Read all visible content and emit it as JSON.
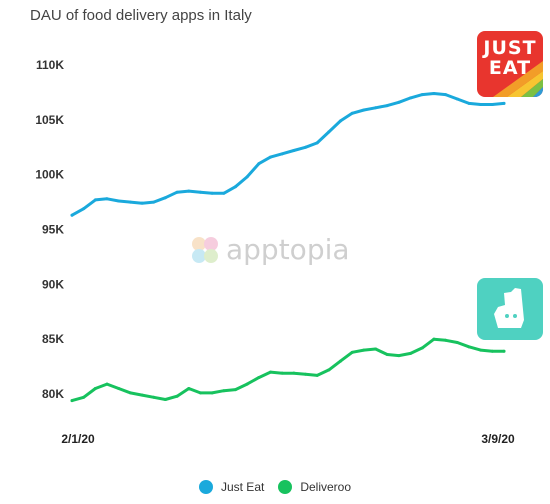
{
  "chart_data": {
    "type": "line",
    "title": "DAU of food delivery apps in Italy",
    "y_ticks": [
      "110K",
      "105K",
      "100K",
      "95K",
      "90K",
      "85K",
      "80K"
    ],
    "y_tick_values": [
      110000,
      105000,
      100000,
      95000,
      90000,
      85000,
      80000
    ],
    "x_tick_labels": [
      "2/1/20",
      "3/9/20"
    ],
    "x_range": [
      "2020-02-01",
      "2020-03-09"
    ],
    "ylim": [
      78000,
      111000
    ],
    "grid": false,
    "legend_position": "bottom",
    "x": [
      "2020-02-01",
      "2020-02-02",
      "2020-02-03",
      "2020-02-04",
      "2020-02-05",
      "2020-02-06",
      "2020-02-07",
      "2020-02-08",
      "2020-02-09",
      "2020-02-10",
      "2020-02-11",
      "2020-02-12",
      "2020-02-13",
      "2020-02-14",
      "2020-02-15",
      "2020-02-16",
      "2020-02-17",
      "2020-02-18",
      "2020-02-19",
      "2020-02-20",
      "2020-02-21",
      "2020-02-22",
      "2020-02-23",
      "2020-02-24",
      "2020-02-25",
      "2020-02-26",
      "2020-02-27",
      "2020-02-28",
      "2020-02-29",
      "2020-03-01",
      "2020-03-02",
      "2020-03-03",
      "2020-03-04",
      "2020-03-05",
      "2020-03-06",
      "2020-03-07",
      "2020-03-08",
      "2020-03-09"
    ],
    "series": [
      {
        "name": "Just Eat",
        "color": "#1aa9dc",
        "values": [
          96300,
          96900,
          97700,
          97800,
          97600,
          97500,
          97400,
          97500,
          97900,
          98400,
          98500,
          98400,
          98300,
          98300,
          98900,
          99800,
          101000,
          101600,
          101900,
          102200,
          102500,
          102900,
          103900,
          104900,
          105600,
          105900,
          106100,
          106300,
          106600,
          107000,
          107300,
          107400,
          107300,
          106900,
          106500,
          106400,
          106400,
          106500
        ]
      },
      {
        "name": "Deliveroo",
        "color": "#17c25e",
        "values": [
          79400,
          79700,
          80500,
          80900,
          80500,
          80100,
          79900,
          79700,
          79500,
          79800,
          80500,
          80100,
          80100,
          80300,
          80400,
          80900,
          81500,
          82000,
          81900,
          81900,
          81800,
          81700,
          82200,
          83000,
          83800,
          84000,
          84100,
          83600,
          83500,
          83700,
          84200,
          85000,
          84900,
          84700,
          84300,
          84000,
          83900,
          83900
        ]
      }
    ]
  },
  "legend": [
    {
      "label": "Just Eat",
      "color": "#1aa9dc"
    },
    {
      "label": "Deliveroo",
      "color": "#17c25e"
    }
  ],
  "logos": {
    "justeat": {
      "line1": "JUST",
      "line2": "EAT"
    },
    "watermark": "apptopia"
  }
}
